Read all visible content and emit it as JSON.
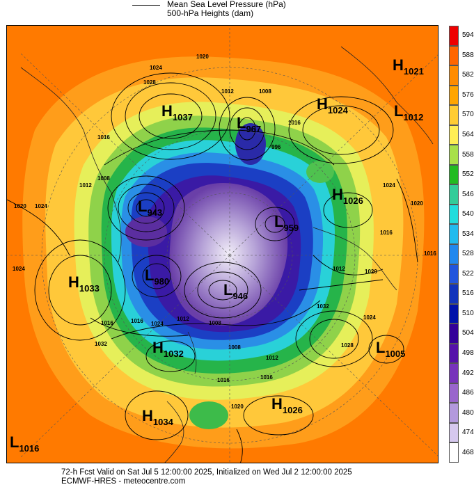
{
  "legend": {
    "mslp_label": "Mean Sea Level Pressure (hPa)",
    "heights_label": "500-hPa Heights (dam)"
  },
  "colorbar": {
    "levels": [
      "594",
      "588",
      "582",
      "576",
      "570",
      "564",
      "558",
      "552",
      "546",
      "540",
      "534",
      "528",
      "522",
      "516",
      "510",
      "504",
      "498",
      "492",
      "486",
      "480",
      "474",
      "468"
    ],
    "colors": [
      "#ee0000",
      "#ff6600",
      "#ff8c00",
      "#ffa500",
      "#ffcc33",
      "#ffee55",
      "#a8e04a",
      "#22bb22",
      "#33cc99",
      "#22dddd",
      "#22bbee",
      "#2288ee",
      "#2255dd",
      "#1133bb",
      "#0011aa",
      "#330099",
      "#5511aa",
      "#7733bb",
      "#9966cc",
      "#b399dd",
      "#d6c8ee",
      "#ffffff"
    ]
  },
  "pressure_centres": [
    {
      "type": "H",
      "value": "1021"
    },
    {
      "type": "H",
      "value": "1037"
    },
    {
      "type": "H",
      "value": "1024"
    },
    {
      "type": "L",
      "value": "1012"
    },
    {
      "type": "L",
      "value": "967"
    },
    {
      "type": "H",
      "value": "1026"
    },
    {
      "type": "L",
      "value": "943"
    },
    {
      "type": "L",
      "value": "959"
    },
    {
      "type": "H",
      "value": "1033"
    },
    {
      "type": "L",
      "value": "980"
    },
    {
      "type": "L",
      "value": "946"
    },
    {
      "type": "H",
      "value": "1032"
    },
    {
      "type": "L",
      "value": "1005"
    },
    {
      "type": "H",
      "value": "1034"
    },
    {
      "type": "H",
      "value": "1026"
    },
    {
      "type": "L",
      "value": "1016"
    }
  ],
  "isobar_labels": [
    "1020",
    "1024",
    "1028",
    "1012",
    "1008",
    "1016",
    "1016",
    "1012",
    "1008",
    "996",
    "1020",
    "1024",
    "1024",
    "1016",
    "1020",
    "1016",
    "1012",
    "1020",
    "1032",
    "1028",
    "1024",
    "1016",
    "1016",
    "1024",
    "1012",
    "1008",
    "1016",
    "1020",
    "1016",
    "1012",
    "1008",
    "1024",
    "1032"
  ],
  "footer": {
    "line1": "72-h Fcst Valid on Sat Jul  5 12:00:00 2025, Initialized on Wed Jul  2 12:00:00 2025",
    "line2": "ECMWF-HRES  - meteocentre.com"
  }
}
